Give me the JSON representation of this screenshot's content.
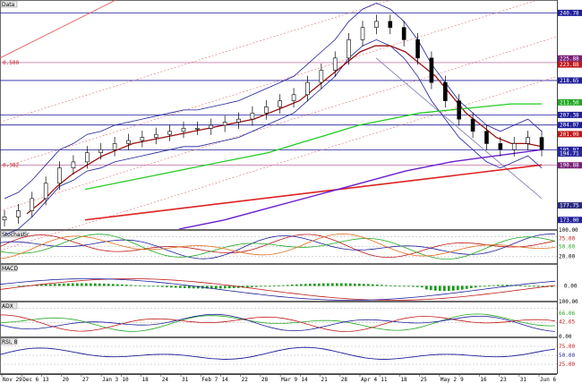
{
  "panels": {
    "price": {
      "title": "Data",
      "fib_labels": [
        "0.500",
        "0.382"
      ]
    },
    "stochastic": {
      "title": "Stochastic"
    },
    "macd": {
      "title": "MACD"
    },
    "adx": {
      "title": "ADX"
    },
    "rsi": {
      "title": "RSI, 8"
    }
  },
  "axis_labels": {
    "price": [
      {
        "text": "240.78",
        "color": "#1f1f9a"
      },
      {
        "text": "225.88",
        "color": "#7a1f7a"
      },
      {
        "text": "223.88",
        "color": "#c01818"
      },
      {
        "text": "218.65",
        "color": "#1f1f9a"
      },
      {
        "text": "211.50",
        "color": "#22a822"
      },
      {
        "text": "207.38",
        "color": "#1f1f9a"
      },
      {
        "text": "204.07",
        "color": "#1f1f9a"
      },
      {
        "text": "201.09",
        "color": "#c01818"
      },
      {
        "text": "195.97",
        "color": "#1f1f9a"
      },
      {
        "text": "194.71",
        "color": "#2a2aa0"
      },
      {
        "text": "190.88",
        "color": "#7a1f7a"
      },
      {
        "text": "177.75",
        "color": "#2a2a80"
      },
      {
        "text": "173.00",
        "color": "#1f1f9a"
      }
    ],
    "stochastic": [
      {
        "text": "100.00",
        "color": "#000"
      },
      {
        "text": "75.00",
        "color": "#c01818"
      },
      {
        "text": "50.00",
        "color": "#22a822"
      },
      {
        "text": "20.00",
        "color": "#000"
      }
    ],
    "macd": [
      {
        "text": "0.00",
        "color": "#000"
      }
    ],
    "adx": [
      {
        "text": "100.00",
        "color": "#000"
      },
      {
        "text": "66.06",
        "color": "#22a822"
      },
      {
        "text": "42.65",
        "color": "#c01818"
      },
      {
        "text": "0.00",
        "color": "#000"
      }
    ],
    "rsi": [
      {
        "text": "75.00",
        "color": "#c01818"
      },
      {
        "text": "50.00",
        "color": "#1f1f9a"
      },
      {
        "text": "25.00",
        "color": "#c01818"
      }
    ]
  },
  "x_axis": [
    "Nov 29",
    "Dec 6",
    "13",
    "20",
    "27",
    "Jan 3",
    "10",
    "18",
    "24",
    "31",
    "Feb 7",
    "14",
    "22",
    "28",
    "Mar 9",
    "14",
    "21",
    "28",
    "Apr 4",
    "11",
    "18",
    "25",
    "May 2",
    "9",
    "16",
    "23",
    "31",
    "Jun 6"
  ],
  "colors": {
    "candle": "#000000",
    "bollinger": "#1f1f9a",
    "ma_short": "#9a1010",
    "ma_mid": "#22cc22",
    "ma_long": "#dd2222",
    "ma_longest": "#6a1ecc",
    "grid_blue": "#1f1f9a",
    "fib_red": "#c01818"
  },
  "chart_data": {
    "type": "line",
    "title": "",
    "series": [
      {
        "values": [
          174,
          176,
          180,
          185,
          190,
          192,
          195,
          196,
          198,
          199,
          200,
          201,
          202,
          203,
          203,
          204,
          205,
          206,
          208,
          210,
          212,
          214,
          218,
          222,
          226,
          232,
          236,
          238,
          236,
          232,
          226,
          218,
          212,
          206,
          202,
          198,
          196,
          198,
          200,
          196
        ]
      },
      {
        "values": [
          175,
          179,
          184,
          188,
          191,
          194,
          196,
          198,
          199,
          200,
          201,
          202,
          203,
          204,
          205,
          206,
          208,
          210,
          212,
          216,
          220,
          224,
          228,
          230,
          230,
          228,
          224,
          220,
          214,
          208,
          204,
          200,
          198,
          198,
          197
        ]
      },
      {
        "values": [
          183,
          185,
          187,
          189,
          191,
          193,
          195,
          198,
          201,
          204,
          206,
          208,
          209,
          210,
          211,
          211
        ]
      },
      {
        "values": [
          176,
          179,
          182,
          185,
          188,
          190,
          192,
          194,
          196,
          198
        ]
      },
      {
        "values": [
          170,
          173,
          177,
          181,
          185,
          189,
          192,
          194,
          196
        ]
      }
    ],
    "ylim": [
      170,
      245
    ]
  }
}
